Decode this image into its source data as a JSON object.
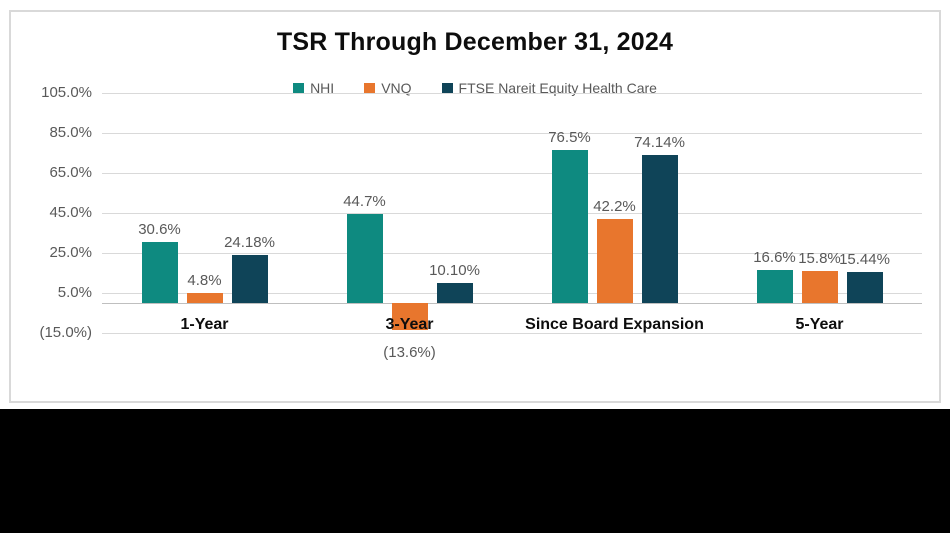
{
  "chart": {
    "border_color": "#D9D9D9",
    "background_color": "#ffffff",
    "footer_band_color": "#000000",
    "gridline_color": "#D9D9D9",
    "axis_line_color": "#BFBFBF",
    "label_color": "#595959",
    "category_label_color": "#0d0d0d"
  },
  "chart_data": {
    "type": "bar",
    "title": "TSR Through December 31, 2024",
    "categories": [
      "1-Year",
      "3-Year",
      "Since Board Expansion",
      "5-Year"
    ],
    "series": [
      {
        "name": "NHI",
        "color": "#0E8A80",
        "values": [
          30.6,
          44.7,
          76.5,
          16.6
        ],
        "labels": [
          "30.6%",
          "44.7%",
          "76.5%",
          "16.6%"
        ]
      },
      {
        "name": "VNQ",
        "color": "#E8762D",
        "values": [
          4.8,
          -13.6,
          42.2,
          15.8
        ],
        "labels": [
          "4.8%",
          "(13.6%)",
          "42.2%",
          "15.8%"
        ]
      },
      {
        "name": "FTSE Nareit Equity Health Care",
        "color": "#0F4458",
        "values": [
          24.18,
          10.1,
          74.14,
          15.44
        ],
        "labels": [
          "24.18%",
          "10.10%",
          "74.14%",
          "15.44%"
        ]
      }
    ],
    "y_axis": {
      "ticks": [
        105,
        85,
        65,
        45,
        25,
        5,
        -15
      ],
      "tick_labels": [
        "105.0%",
        "85.0%",
        "65.0%",
        "45.0%",
        "25.0%",
        "5.0%",
        "(15.0%)"
      ],
      "ylim": [
        -15,
        105
      ],
      "grid": true
    },
    "legend_position": "top",
    "xlabel": "",
    "ylabel": ""
  }
}
